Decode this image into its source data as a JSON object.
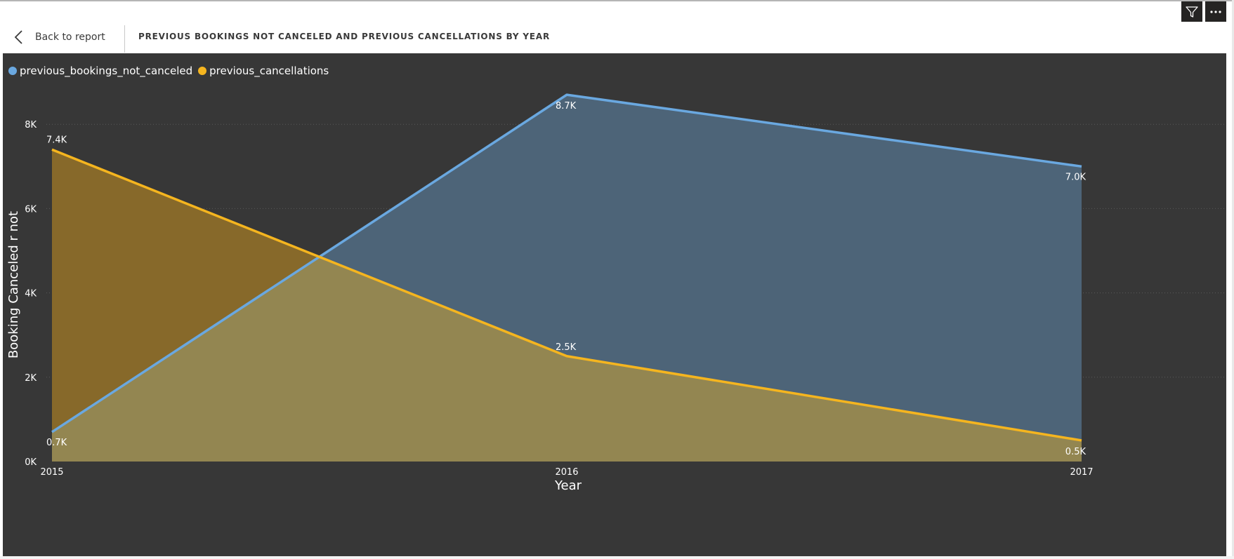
{
  "header": {
    "back_label": "Back to report",
    "title": "PREVIOUS BOOKINGS NOT CANCELED AND PREVIOUS CANCELLATIONS BY YEAR"
  },
  "toolbar": {
    "filter_icon": "filter-icon",
    "more_icon": "more-options-icon"
  },
  "colors": {
    "background": "#373737",
    "series_blue": "#6aa8e0",
    "series_yellow": "#f5b51f",
    "area_blue": "#4d6478",
    "area_yellow": "#87692a",
    "area_overlap": "#938651"
  },
  "chart_data": {
    "type": "area",
    "x": [
      "2015",
      "2016",
      "2017"
    ],
    "series": [
      {
        "name": "previous_bookings_not_canceled",
        "values": [
          700,
          8700,
          7000
        ],
        "labels": [
          "0.7K",
          "8.7K",
          "7.0K"
        ]
      },
      {
        "name": "previous_cancellations",
        "values": [
          7400,
          2500,
          500
        ],
        "labels": [
          "7.4K",
          "2.5K",
          "0.5K"
        ]
      }
    ],
    "xlabel": "Year",
    "ylabel": "Booking Canceled r not",
    "ylim": [
      0,
      9000
    ],
    "yticks": [
      0,
      2000,
      4000,
      6000,
      8000
    ],
    "ytick_labels": [
      "0K",
      "2K",
      "4K",
      "6K",
      "8K"
    ],
    "grid": true,
    "legend_position": "top-left"
  }
}
